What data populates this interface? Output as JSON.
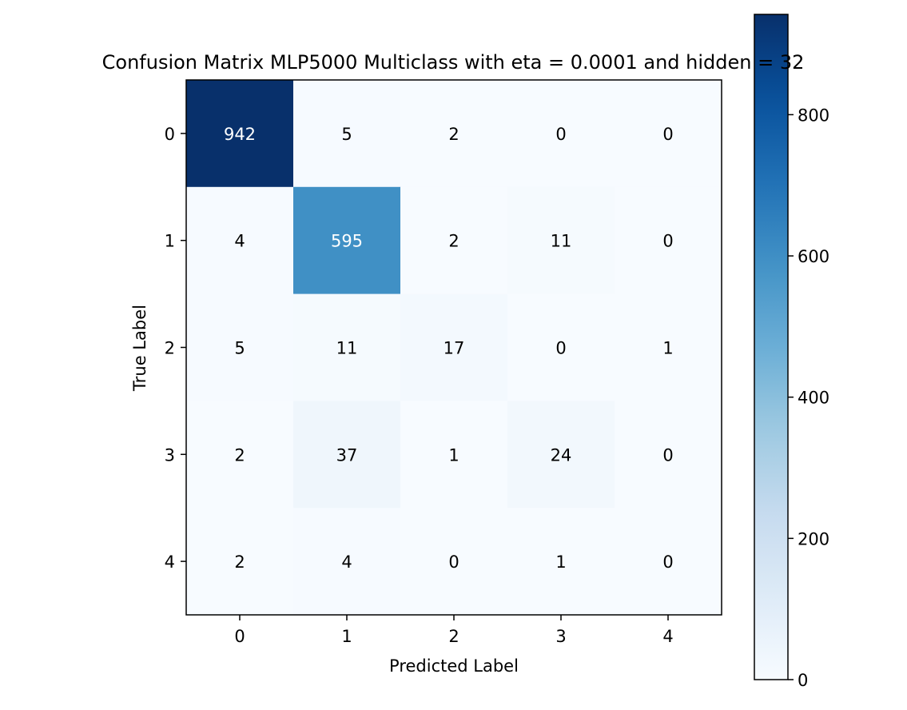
{
  "chart_data": {
    "type": "heatmap",
    "title": "Confusion Matrix MLP5000 Multiclass with eta = 0.0001 and hidden = 32",
    "xlabel": "Predicted Label",
    "ylabel": "True Label",
    "x_categories": [
      "0",
      "1",
      "2",
      "3",
      "4"
    ],
    "y_categories": [
      "0",
      "1",
      "2",
      "3",
      "4"
    ],
    "values": [
      [
        942,
        5,
        2,
        0,
        0
      ],
      [
        4,
        595,
        2,
        11,
        0
      ],
      [
        5,
        11,
        17,
        0,
        1
      ],
      [
        2,
        37,
        1,
        24,
        0
      ],
      [
        2,
        4,
        0,
        1,
        0
      ]
    ],
    "colormap": "Blues",
    "colorbar": {
      "vmin": 0,
      "vmax": 942,
      "ticks": [
        0,
        200,
        400,
        600,
        800
      ]
    },
    "text_color_dark": "#000000",
    "text_color_light": "#ffffff",
    "grid": false
  }
}
